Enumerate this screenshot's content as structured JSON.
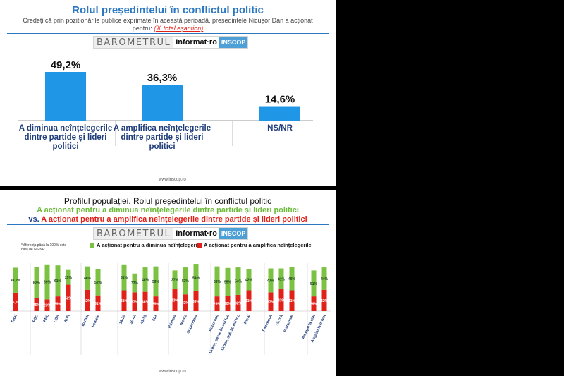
{
  "panel1": {
    "title": "Rolul președintelui în conflictul politic",
    "subtitle_line1": "Credeți că prin pozitionările publice exprimate în această perioadă, președintele Nicușor Dan a acționat",
    "subtitle_line2": "pentru:",
    "subtitle_emphasis": "(% total eșantion)",
    "brand": {
      "barometer": "BAROMETRUL",
      "partner": "Informat·ro",
      "inscop": "INSCOP"
    },
    "footer": "www.inscop.ro"
  },
  "panel2": {
    "title": "Profilul populației. Rolul președintelui în conflictul politic",
    "line_green": "A acționat pentru a diminua neînțelegerile dintre partide și lideri politici",
    "vs": "vs.",
    "line_red": "A acționat pentru a amplifica neînțelegerile dintre partide și lideri politici",
    "legend_green": "A acționat pentru a diminua neînțelegerile",
    "legend_red": "A acționat pentru a amplifica neînțelegerile",
    "note": "*diferența până la 100% este dată de NS/NR",
    "brand": {
      "barometer": "BAROMETRUL",
      "partner": "Informat·ro",
      "inscop": "INSCOP"
    },
    "footer": "www.inscop.ro"
  },
  "colors": {
    "blue": "#1f96e6",
    "green": "#7cc242",
    "red": "#e0211a",
    "title_blue": "#2b77c2"
  },
  "chart_data": [
    {
      "type": "bar",
      "categories": [
        "A diminua neînțelegerile dintre partide și lideri politici",
        "A amplifica neînțelegerile dintre partide și lideri politici",
        "NS/NR"
      ],
      "category_lines": [
        [
          "A diminua neînțelegerile",
          "dintre partide și lideri",
          "politici"
        ],
        [
          "A amplifica neînțelegerile",
          "dintre partide și lideri",
          "politici"
        ],
        [
          "NS/NR"
        ]
      ],
      "values": [
        49.2,
        36.3,
        14.6
      ],
      "value_labels": [
        "49,2%",
        "36,3%",
        "14,6%"
      ],
      "ylim": [
        0,
        55
      ]
    },
    {
      "type": "bar",
      "stacked": true,
      "groups": [
        [
          "Total"
        ],
        [
          "PSD",
          "PNL",
          "USR",
          "AUR"
        ],
        [
          "Barbat",
          "Femeie"
        ],
        [
          "18-29",
          "30-44",
          "45-59",
          "60+"
        ],
        [
          "Primara",
          "Medie",
          "Superioara"
        ],
        [
          "Bucuresti",
          "Urban, peste 50 mii loc",
          "Urban, sub 50 mii loc",
          "Rural"
        ],
        [
          "Facebook",
          "TikTok",
          "Instagram"
        ],
        [
          "Angajat la stat",
          "Angajat la privat"
        ]
      ],
      "series": [
        {
          "name": "A acționat pentru a amplifica neînțelegerile",
          "values": [
            36.3,
            25,
            23,
            29,
            52,
            42,
            31,
            41,
            37,
            38,
            29,
            43,
            33,
            39,
            29,
            30,
            32,
            41,
            37,
            43,
            41,
            29,
            42
          ],
          "labels": [
            "36,3%",
            "25%",
            "23%",
            "29%",
            "52%",
            "42%",
            "31%",
            "41%",
            "37%",
            "38%",
            "29%",
            "43%",
            "33%",
            "39%",
            "29%",
            "30%",
            "32%",
            "41%",
            "37%",
            "43%",
            "41%",
            "29%",
            "42%"
          ]
        },
        {
          "name": "A acționat pentru a diminua neînțelegerile",
          "values": [
            49.2,
            62,
            69,
            61,
            29,
            46,
            52,
            51,
            37,
            48,
            59,
            37,
            53,
            54,
            59,
            55,
            54,
            42,
            47,
            41,
            46,
            51,
            44
          ],
          "labels": [
            "49,2%",
            "62%",
            "69%",
            "61%",
            "29%",
            "46%",
            "52%",
            "51%",
            "37%",
            "48%",
            "59%",
            "37%",
            "53%",
            "54%",
            "59%",
            "55%",
            "54%",
            "42%",
            "47%",
            "41%",
            "46%",
            "51%",
            "44%"
          ]
        }
      ],
      "ylim": [
        0,
        100
      ]
    }
  ]
}
